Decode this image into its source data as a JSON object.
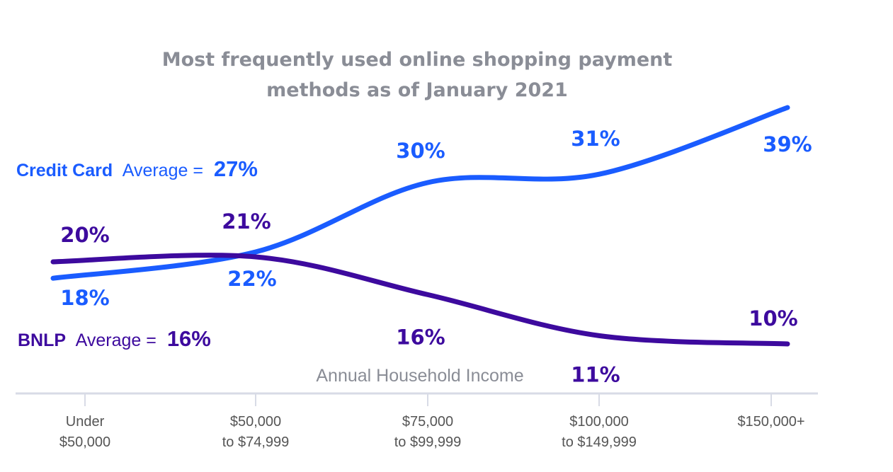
{
  "chart_data": {
    "type": "line",
    "title": [
      "Most frequently used online shopping payment",
      "methods as of January 2021"
    ],
    "xlabel": "Annual Household Income",
    "ylabel": "",
    "categories": [
      [
        "Under",
        "$50,000"
      ],
      [
        "$50,000",
        "to $74,999"
      ],
      [
        "$75,000",
        "to $99,999"
      ],
      [
        "$100,000",
        "to $149,999"
      ],
      [
        "$150,000+"
      ]
    ],
    "series": [
      {
        "name": "Credit Card",
        "values": [
          18,
          22,
          30,
          31,
          39
        ],
        "labels": [
          "18%",
          "22%",
          "30%",
          "31%",
          "39%"
        ],
        "color": "#1a5cff",
        "average_label": "Average =",
        "average_value": "27%"
      },
      {
        "name": "BNLP",
        "values": [
          20,
          21,
          16,
          11,
          10
        ],
        "labels": [
          "20%",
          "21%",
          "16%",
          "11%",
          "10%"
        ],
        "color": "#3d0a9e",
        "average_label": "Average =",
        "average_value": "16%"
      }
    ],
    "grid": false,
    "legend": "left"
  },
  "colors": {
    "title": "#8a8d96",
    "axis": "#d8dbe6",
    "tick_text": "#555555"
  }
}
